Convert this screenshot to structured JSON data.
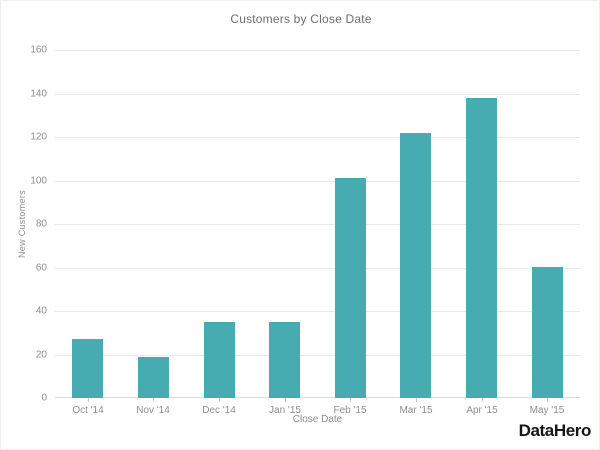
{
  "chart_data": {
    "type": "bar",
    "title": "Customers by Close Date",
    "categories": [
      "Oct '14",
      "Nov '14",
      "Dec '14",
      "Jan '15",
      "Feb '15",
      "Mar '15",
      "Apr '15",
      "May '15"
    ],
    "values": [
      27,
      19,
      35,
      35,
      101,
      122,
      138,
      60
    ],
    "xlabel": "Close Date",
    "ylabel": "New Customers",
    "ylim": [
      0,
      160
    ],
    "yticks": [
      0,
      20,
      40,
      60,
      80,
      100,
      120,
      140,
      160
    ],
    "bar_color": "#47ACB1",
    "grid": true,
    "legend_position": "none"
  },
  "branding": {
    "logo_text": "DataHero",
    "logo_color": "#161616"
  }
}
